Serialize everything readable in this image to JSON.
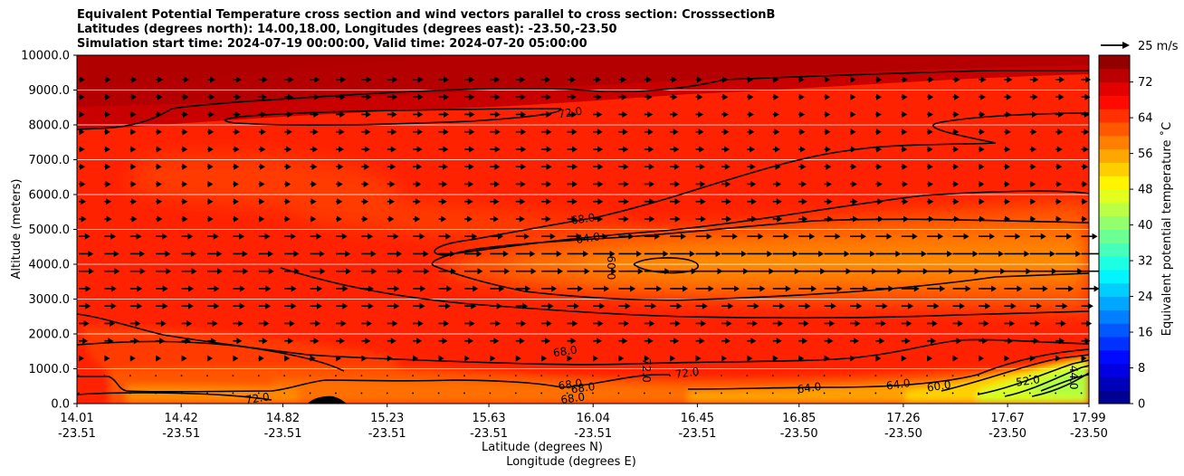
{
  "chart_data": {
    "type": "contour",
    "title_lines": [
      "Equivalent Potential Temperature cross section and wind vectors parallel to cross section: CrosssectionB",
      "Latitudes (degrees north): 14.00,18.00, Longitudes (degrees east): -23.50,-23.50",
      "Simulation start time: 2024-07-19 00:00:00, Valid time: 2024-07-20 05:00:00"
    ],
    "ylabel": "Altitude (meters)",
    "xlabel_lat": "Latitude (degrees N)",
    "xlabel_lon": "Longitude (degrees E)",
    "ylim": [
      0,
      10000
    ],
    "yticks": [
      "0.0",
      "1000.0",
      "2000.0",
      "3000.0",
      "4000.0",
      "5000.0",
      "6000.0",
      "7000.0",
      "8000.0",
      "9000.0",
      "10000.0"
    ],
    "ytick_values": [
      0,
      1000,
      2000,
      3000,
      4000,
      5000,
      6000,
      7000,
      8000,
      9000,
      10000
    ],
    "xticks_lat": [
      "14.01",
      "14.42",
      "14.82",
      "15.23",
      "15.63",
      "16.04",
      "16.45",
      "16.85",
      "17.26",
      "17.67",
      "17.99"
    ],
    "xticks_lon": [
      "-23.51",
      "-23.51",
      "-23.51",
      "-23.51",
      "-23.51",
      "-23.51",
      "-23.51",
      "-23.50",
      "-23.50",
      "-23.50",
      "-23.50"
    ],
    "xtick_values": [
      14.01,
      14.42,
      14.82,
      15.23,
      15.63,
      16.04,
      16.45,
      16.85,
      17.26,
      17.67,
      17.99
    ],
    "xlim": [
      14.01,
      17.99
    ],
    "colorbar": {
      "label": "Equivalent potential temperature ˚C",
      "range": [
        0,
        78
      ],
      "ticks": [
        "0",
        "8",
        "16",
        "24",
        "32",
        "40",
        "48",
        "56",
        "64",
        "72"
      ],
      "tick_values": [
        0,
        8,
        16,
        24,
        32,
        40,
        48,
        56,
        64,
        72
      ],
      "colormap": "jet"
    },
    "quiver_key": "25 m/s",
    "contour_labels": [
      {
        "text": "72.0",
        "lat": 15.95,
        "alt": 8350
      },
      {
        "text": "68.0",
        "lat": 16.0,
        "alt": 5300
      },
      {
        "text": "64.0",
        "lat": 16.02,
        "alt": 4750
      },
      {
        "text": "60.0",
        "lat": 16.11,
        "alt": 3900
      },
      {
        "text": "68.0",
        "lat": 15.93,
        "alt": 1500
      },
      {
        "text": "72.0",
        "lat": 16.25,
        "alt": 950
      },
      {
        "text": "72.0",
        "lat": 16.41,
        "alt": 880
      },
      {
        "text": "68.0",
        "lat": 15.95,
        "alt": 550
      },
      {
        "text": "68.0",
        "lat": 15.96,
        "alt": 150
      },
      {
        "text": "68.0",
        "lat": 16.0,
        "alt": 450
      },
      {
        "text": "72.0",
        "lat": 14.72,
        "alt": 150
      },
      {
        "text": "64.0",
        "lat": 16.89,
        "alt": 450
      },
      {
        "text": "64.0",
        "lat": 17.24,
        "alt": 550
      },
      {
        "text": "60.0",
        "lat": 17.4,
        "alt": 500
      },
      {
        "text": "52.0",
        "lat": 17.75,
        "alt": 650
      },
      {
        "text": "44.0",
        "lat": 17.93,
        "alt": 750
      }
    ]
  }
}
